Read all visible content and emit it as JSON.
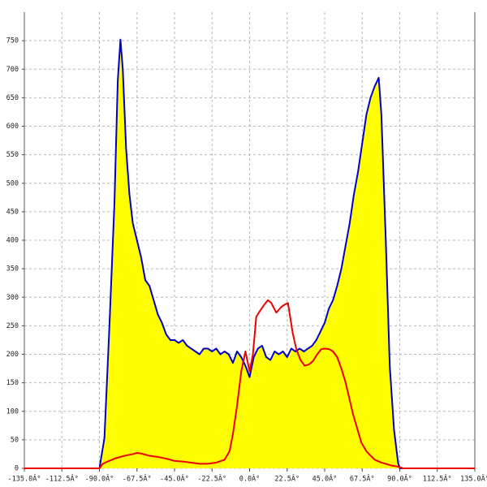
{
  "chart_data": {
    "type": "area",
    "xlim": [
      -135,
      135
    ],
    "ylim": [
      0,
      800
    ],
    "grid": true,
    "xticks": [
      {
        "value": -135,
        "label": "-135.0Â°"
      },
      {
        "value": -112.5,
        "label": "-112.5Â°"
      },
      {
        "value": -90,
        "label": "-90.0Â°"
      },
      {
        "value": -67.5,
        "label": "-67.5Â°"
      },
      {
        "value": -45,
        "label": "-45.0Â°"
      },
      {
        "value": -22.5,
        "label": "-22.5Â°"
      },
      {
        "value": 0,
        "label": "0.0Â°"
      },
      {
        "value": 22.5,
        "label": "22.5Â°"
      },
      {
        "value": 45,
        "label": "45.0Â°"
      },
      {
        "value": 67.5,
        "label": "67.5Â°"
      },
      {
        "value": 90,
        "label": "90.0Â°"
      },
      {
        "value": 112.5,
        "label": "112.5Â°"
      },
      {
        "value": 135,
        "label": "135.0Â°"
      }
    ],
    "yticks": [
      0,
      50,
      100,
      150,
      200,
      250,
      300,
      350,
      400,
      450,
      500,
      550,
      600,
      650,
      700,
      750
    ],
    "series": [
      {
        "color": "#0000cc",
        "fill": "#ffff00",
        "x": [
          -92,
          -90,
          -87,
          -84,
          -81,
          -79,
          -77.4,
          -76,
          -74,
          -72,
          -70,
          -67.5,
          -65,
          -62.5,
          -60,
          -57.5,
          -55,
          -52.5,
          -50,
          -47.5,
          -45,
          -42.5,
          -40,
          -37.5,
          -35,
          -32.5,
          -30,
          -27.5,
          -25,
          -22.5,
          -20,
          -17.5,
          -15,
          -12.5,
          -10,
          -7.5,
          -5,
          -2.5,
          0,
          2.5,
          5,
          7.5,
          10,
          12.5,
          15,
          17.5,
          20,
          22.5,
          25,
          27.5,
          30,
          32.5,
          35,
          37.5,
          40,
          42.5,
          45,
          47.5,
          50,
          52.5,
          55,
          57.5,
          60,
          62.5,
          65,
          67.5,
          70,
          72.5,
          75,
          77.4,
          79,
          81.7,
          84,
          86.6,
          89,
          90,
          92
        ],
        "values": [
          0,
          0,
          53,
          250,
          465,
          680,
          752,
          700,
          560,
          480,
          430,
          400,
          370,
          330,
          320,
          295,
          270,
          255,
          235,
          225,
          225,
          220,
          225,
          215,
          210,
          205,
          200,
          210,
          210,
          205,
          210,
          200,
          205,
          200,
          185,
          205,
          195,
          180,
          160,
          195,
          210,
          215,
          195,
          190,
          205,
          200,
          205,
          195,
          210,
          205,
          210,
          205,
          210,
          215,
          225,
          240,
          255,
          280,
          295,
          320,
          350,
          390,
          430,
          480,
          520,
          570,
          620,
          650,
          670,
          685,
          620,
          394,
          180,
          67,
          10,
          0,
          0
        ]
      },
      {
        "color": "#ee0000",
        "x": [
          -135,
          -92,
          -90,
          -88,
          -85,
          -80,
          -75,
          -70,
          -67.5,
          -65,
          -60,
          -55,
          -50,
          -45,
          -40,
          -35,
          -30,
          -25,
          -20,
          -15,
          -12,
          -10,
          -7.5,
          -5,
          -2.5,
          0,
          2,
          4,
          6,
          8.8,
          11,
          13,
          16,
          19,
          21,
          23,
          25.8,
          28,
          30.5,
          33,
          35.5,
          38,
          40.5,
          43,
          45,
          47.7,
          50,
          52.5,
          55,
          57.4,
          60,
          62,
          65,
          67,
          70,
          72,
          75,
          79,
          85,
          89,
          92,
          135
        ],
        "values": [
          0,
          0,
          0,
          8,
          12,
          18,
          22,
          25,
          27,
          26,
          22,
          20,
          17,
          13,
          12,
          10,
          8,
          8,
          10,
          15,
          30,
          60,
          110,
          170,
          205,
          170,
          200,
          266,
          275,
          287,
          295,
          290,
          273,
          283,
          287,
          290,
          238,
          209,
          190,
          180,
          182,
          188,
          200,
          209,
          210,
          209,
          205,
          195,
          175,
          152,
          120,
          95,
          65,
          45,
          30,
          24,
          15,
          10,
          5,
          3,
          0,
          0
        ]
      }
    ]
  }
}
